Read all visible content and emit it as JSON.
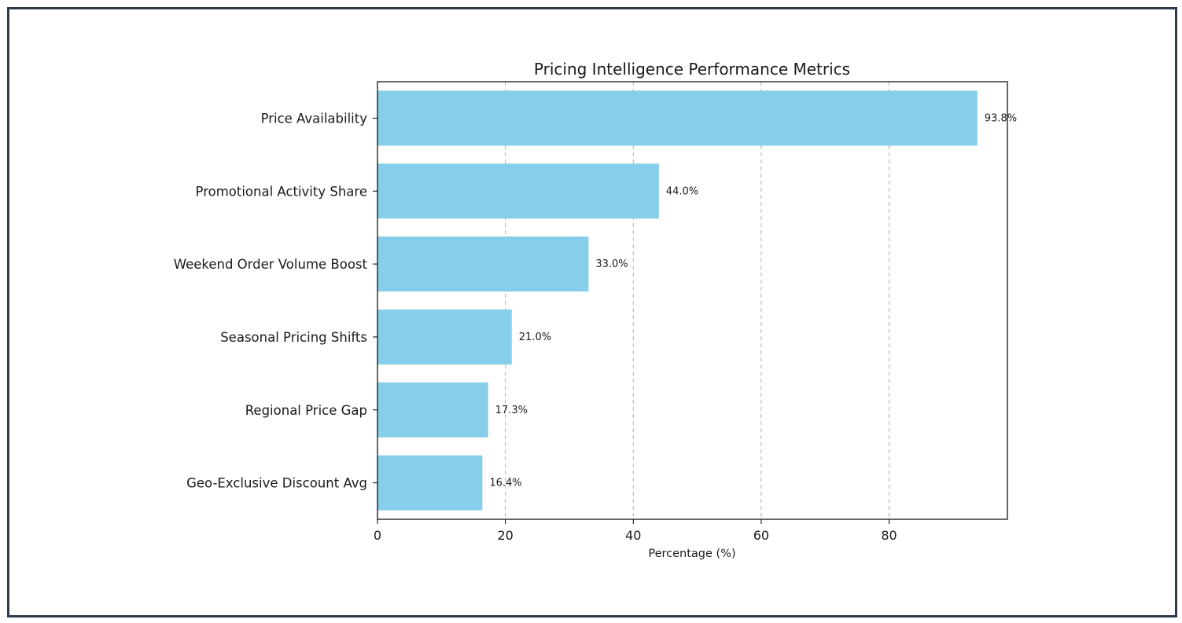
{
  "chart_data": {
    "type": "bar",
    "orientation": "horizontal",
    "title": "Pricing Intelligence Performance Metrics",
    "xlabel": "Percentage (%)",
    "ylabel": "",
    "categories": [
      "Price Availability",
      "Promotional Activity Share",
      "Weekend Order Volume Boost",
      "Seasonal Pricing Shifts",
      "Regional Price Gap",
      "Geo-Exclusive Discount Avg"
    ],
    "values": [
      93.8,
      44.0,
      33.0,
      21.0,
      17.3,
      16.4
    ],
    "value_labels": [
      "93.8%",
      "44.0%",
      "33.0%",
      "21.0%",
      "17.3%",
      "16.4%"
    ],
    "xticks": [
      0,
      20,
      40,
      60,
      80
    ],
    "xlim": [
      0,
      98.5
    ],
    "grid": "x-dashed",
    "bar_color": "#87ceeb",
    "grid_color": "#b0b0b0",
    "border_color": "#2f3a48"
  }
}
